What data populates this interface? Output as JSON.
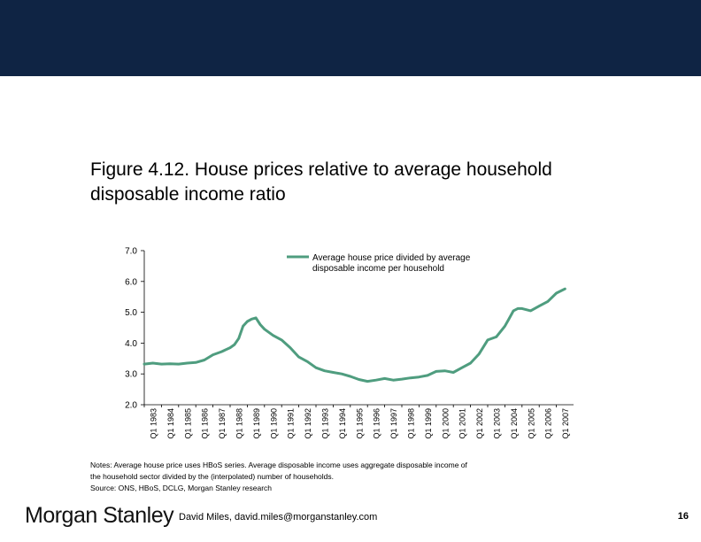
{
  "slide": {
    "title_line1": "Figure 4.12. House prices relative to average household",
    "title_line2": "disposable income ratio",
    "notes_line1": "Notes: Average house price uses HBoS series. Average disposable income uses aggregate disposable income of",
    "notes_line2": "the household sector divided by the (interpolated) number of households.",
    "source": "Source: ONS, HBoS, DCLG, Morgan Stanley research",
    "logo": "Morgan Stanley",
    "author": "David Miles, david.miles@morganstanley.com",
    "page_number": "16"
  },
  "colors": {
    "header_band": "#0f2444",
    "series": "#4f9d7f"
  },
  "chart_data": {
    "type": "line",
    "ylim": [
      2.0,
      7.0
    ],
    "y_ticks": [
      "7.0",
      "6.0",
      "5.0",
      "4.0",
      "3.0",
      "2.0"
    ],
    "x_tick_labels": [
      "Q1 1983",
      "Q1 1984",
      "Q1 1985",
      "Q1 1986",
      "Q1 1987",
      "Q1 1988",
      "Q1 1989",
      "Q1 1990",
      "Q1 1991",
      "Q1 1992",
      "Q1 1993",
      "Q1 1994",
      "Q1 1995",
      "Q1 1996",
      "Q1 1997",
      "Q1 1998",
      "Q1 1999",
      "Q1 2000",
      "Q1 2001",
      "Q1 2002",
      "Q1 2003",
      "Q1 2004",
      "Q1 2005",
      "Q1 2006",
      "Q1 2007"
    ],
    "legend_position": "top-right",
    "grid": false,
    "series": [
      {
        "name": "Average house price divided by average disposable income per household",
        "x": [
          "1983",
          "1983.5",
          "1984",
          "1984.5",
          "1985",
          "1985.5",
          "1986",
          "1986.5",
          "1987",
          "1987.5",
          "1988",
          "1988.25",
          "1988.5",
          "1988.75",
          "1989",
          "1989.25",
          "1989.5",
          "1989.75",
          "1990",
          "1990.5",
          "1991",
          "1991.5",
          "1992",
          "1992.5",
          "1993",
          "1993.5",
          "1994",
          "1994.5",
          "1995",
          "1995.5",
          "1996",
          "1996.5",
          "1997",
          "1997.5",
          "1998",
          "1998.5",
          "1999",
          "1999.5",
          "2000",
          "2000.5",
          "2001",
          "2001.5",
          "2002",
          "2002.5",
          "2003",
          "2003.5",
          "2004",
          "2004.25",
          "2004.5",
          "2004.75",
          "2005",
          "2005.5",
          "2006",
          "2006.5",
          "2007",
          "2007.5"
        ],
        "values": [
          3.32,
          3.35,
          3.32,
          3.33,
          3.32,
          3.35,
          3.37,
          3.45,
          3.62,
          3.72,
          3.85,
          3.95,
          4.15,
          4.55,
          4.7,
          4.78,
          4.82,
          4.6,
          4.45,
          4.25,
          4.1,
          3.85,
          3.55,
          3.4,
          3.2,
          3.1,
          3.05,
          3.0,
          2.92,
          2.82,
          2.76,
          2.8,
          2.85,
          2.8,
          2.83,
          2.87,
          2.9,
          2.95,
          3.08,
          3.1,
          3.05,
          3.2,
          3.35,
          3.65,
          4.1,
          4.2,
          4.55,
          4.8,
          5.05,
          5.12,
          5.12,
          5.05,
          5.2,
          5.35,
          5.62,
          5.76
        ]
      }
    ]
  }
}
